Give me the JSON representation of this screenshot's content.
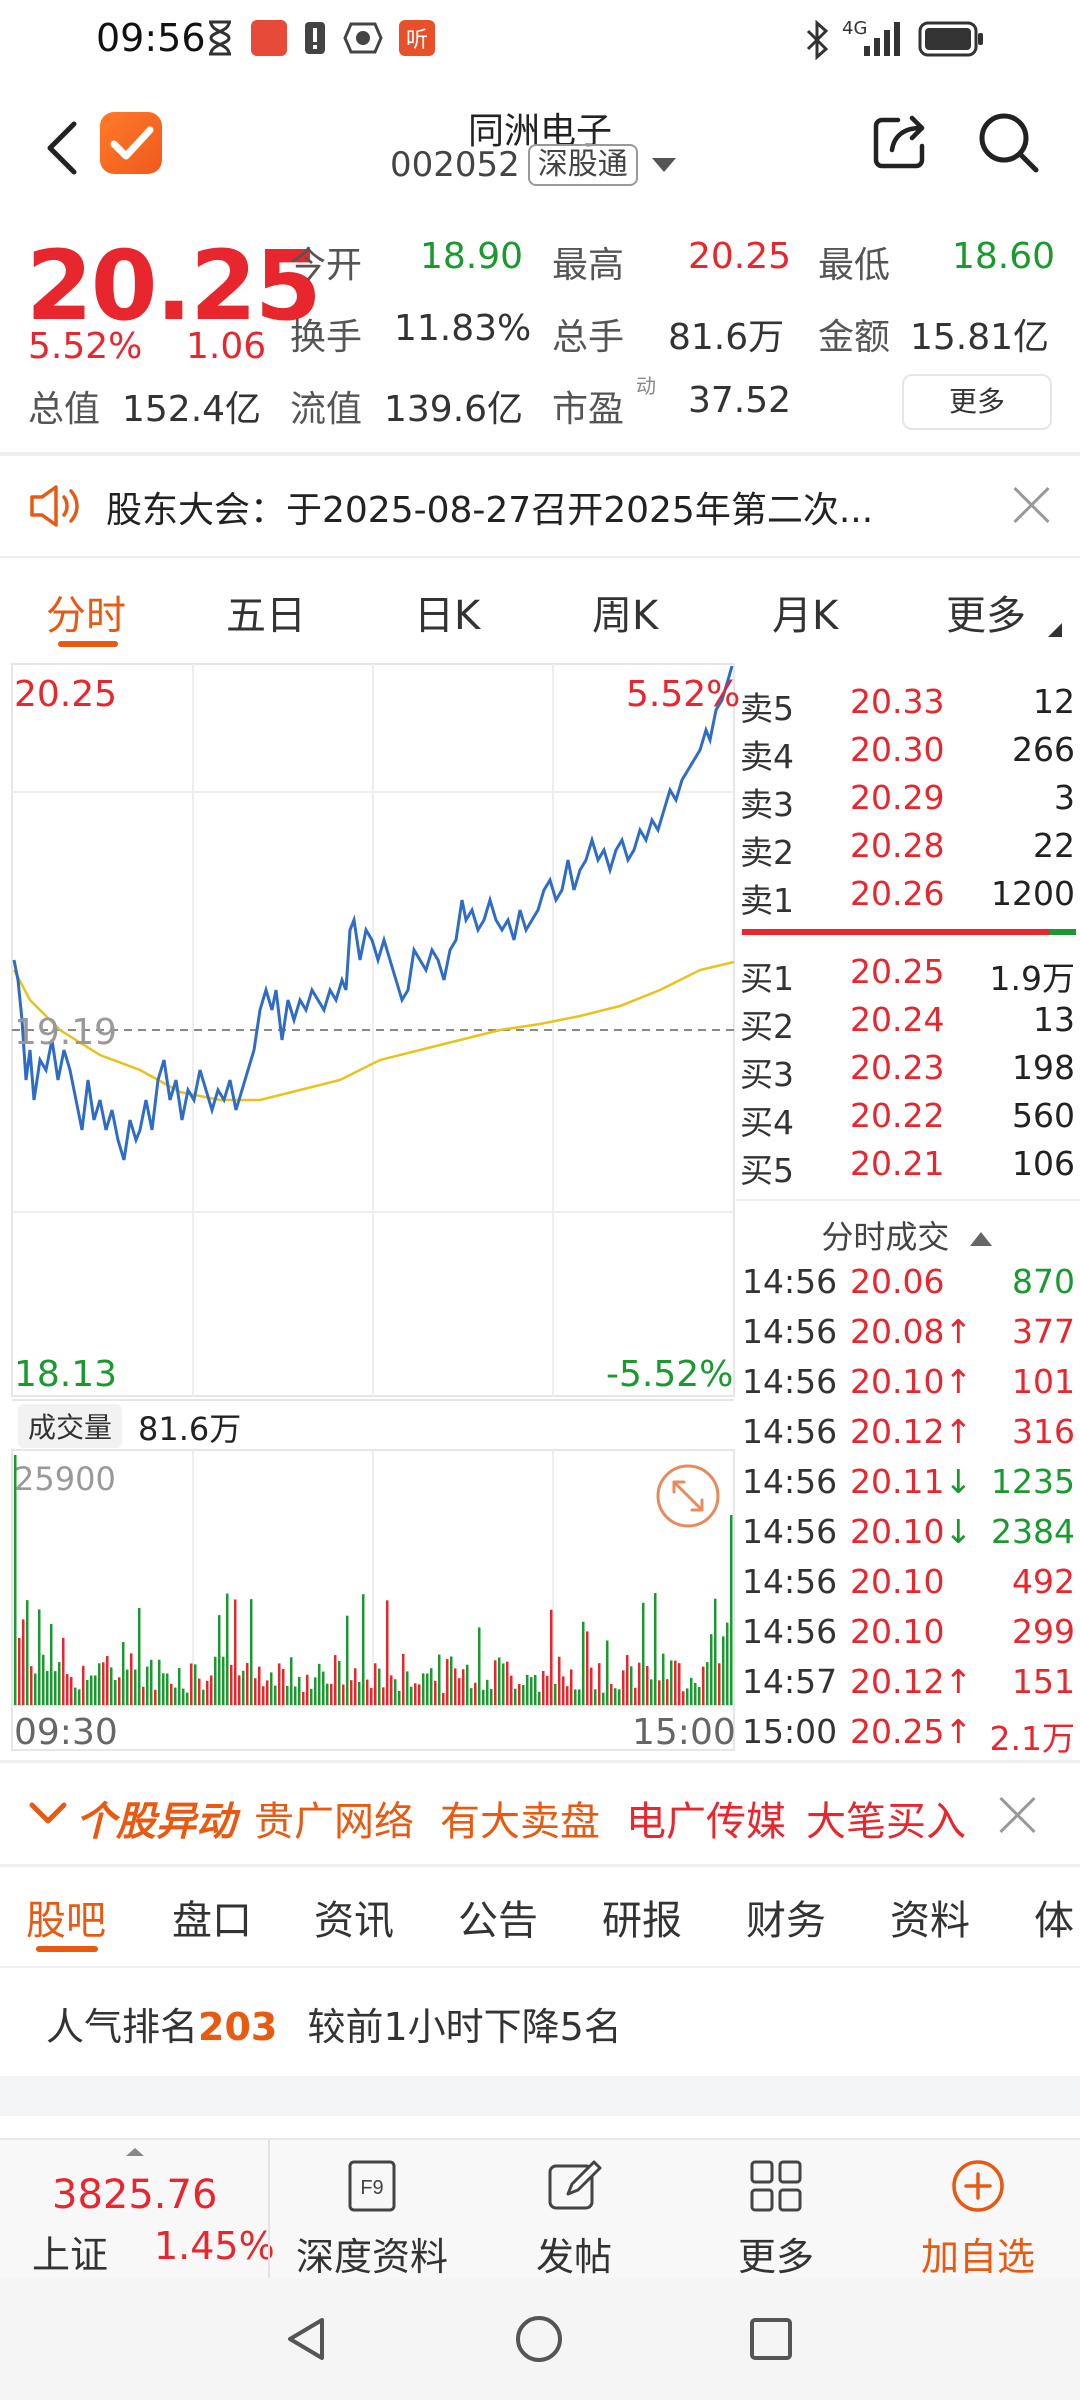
{
  "status_bar": {
    "time": "09:56",
    "network": "4G"
  },
  "header": {
    "stock_name": "同洲电子",
    "stock_code": "002052",
    "market": "深股通"
  },
  "quote": {
    "price": "20.25",
    "change_pct": "5.52%",
    "change_amt": "1.06",
    "open_label": "今开",
    "open": "18.90",
    "high_label": "最高",
    "high": "20.25",
    "low_label": "最低",
    "low": "18.60",
    "turnover_rate_label": "换手",
    "turnover_rate": "11.83%",
    "volume_label": "总手",
    "volume": "81.6万",
    "amount_label": "金额",
    "amount": "15.81亿",
    "market_cap_label": "总值",
    "market_cap": "152.4亿",
    "float_cap_label": "流值",
    "float_cap": "139.6亿",
    "pe_label": "市盈",
    "pe_sup": "动",
    "pe": "37.52",
    "more_label": "更多"
  },
  "announcement": {
    "text": "股东大会：于2025-08-27召开2025年第二次..."
  },
  "chart_tabs": [
    "分时",
    "五日",
    "日K",
    "周K",
    "月K",
    "更多"
  ],
  "chart_labels": {
    "top_price": "20.25",
    "top_pct": "5.52%",
    "mid_price": "19.19",
    "bottom_price": "18.13",
    "bottom_pct": "-5.52%",
    "volume_label": "成交量",
    "volume_value": "81.6万",
    "volume_max": "25900",
    "time_start": "09:30",
    "time_end": "15:00"
  },
  "order_book": {
    "asks": [
      {
        "label": "卖5",
        "price": "20.33",
        "vol": "12"
      },
      {
        "label": "卖4",
        "price": "20.30",
        "vol": "266"
      },
      {
        "label": "卖3",
        "price": "20.29",
        "vol": "3"
      },
      {
        "label": "卖2",
        "price": "20.28",
        "vol": "22"
      },
      {
        "label": "卖1",
        "price": "20.26",
        "vol": "1200"
      }
    ],
    "bids": [
      {
        "label": "买1",
        "price": "20.25",
        "vol": "1.9万"
      },
      {
        "label": "买2",
        "price": "20.24",
        "vol": "13"
      },
      {
        "label": "买3",
        "price": "20.23",
        "vol": "198"
      },
      {
        "label": "买4",
        "price": "20.22",
        "vol": "560"
      },
      {
        "label": "买5",
        "price": "20.21",
        "vol": "106"
      }
    ]
  },
  "trades": {
    "title": "分时成交",
    "rows": [
      {
        "time": "14:56",
        "price": "20.06",
        "arrow": "",
        "vol": "870",
        "side": "sell"
      },
      {
        "time": "14:56",
        "price": "20.08",
        "arrow": "↑",
        "vol": "377",
        "side": "buy"
      },
      {
        "time": "14:56",
        "price": "20.10",
        "arrow": "↑",
        "vol": "101",
        "side": "buy"
      },
      {
        "time": "14:56",
        "price": "20.12",
        "arrow": "↑",
        "vol": "316",
        "side": "buy"
      },
      {
        "time": "14:56",
        "price": "20.11",
        "arrow": "↓",
        "vol": "1235",
        "side": "sell"
      },
      {
        "time": "14:56",
        "price": "20.10",
        "arrow": "↓",
        "vol": "2384",
        "side": "sell"
      },
      {
        "time": "14:56",
        "price": "20.10",
        "arrow": "",
        "vol": "492",
        "side": "buy"
      },
      {
        "time": "14:56",
        "price": "20.10",
        "arrow": "",
        "vol": "299",
        "side": "buy"
      },
      {
        "time": "14:57",
        "price": "20.12",
        "arrow": "↑",
        "vol": "151",
        "side": "buy"
      },
      {
        "time": "15:00",
        "price": "20.25",
        "arrow": "↑",
        "vol": "2.1万",
        "side": "buy"
      }
    ]
  },
  "anomaly": {
    "title": "个股异动",
    "items": [
      "贵广网络",
      "有大卖盘",
      "电广传媒",
      "大笔买入"
    ]
  },
  "sub_tabs": [
    "股吧",
    "盘口",
    "资讯",
    "公告",
    "研报",
    "财务",
    "资料",
    "体"
  ],
  "popularity": {
    "label": "人气排名",
    "rank": "203",
    "note": "较前1小时下降5名"
  },
  "toolbar": {
    "index_value": "3825.76",
    "index_name": "上证",
    "index_pct": "1.45%",
    "items": [
      "深度资料",
      "发帖",
      "更多",
      "加自选"
    ]
  },
  "colors": {
    "up": "#e8262d",
    "down": "#1a9a2e",
    "accent": "#e85a12",
    "price_line": "#2e6cc7",
    "avg_line": "#e8c31c"
  }
}
